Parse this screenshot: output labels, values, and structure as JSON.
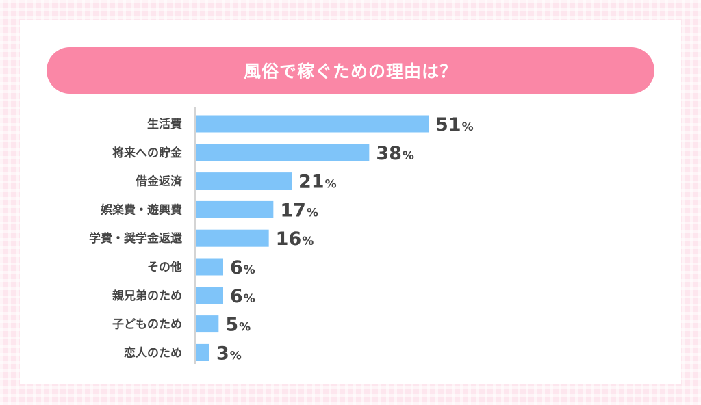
{
  "chart_data": {
    "type": "bar",
    "orientation": "horizontal",
    "title": "風俗で稼ぐための理由は？",
    "categories": [
      "生活費",
      "将来への貯金",
      "借金返済",
      "娯楽費・遊興費",
      "学費・奨学金返還",
      "その他",
      "親兄弟のため",
      "子どものため",
      "恋人のため"
    ],
    "values": [
      51,
      38,
      21,
      17,
      16,
      6,
      6,
      5,
      3
    ],
    "unit": "%",
    "bar_color": "#7fc4f9",
    "grid": false,
    "legend": "none"
  },
  "colors": {
    "title_bg": "#fa87a6",
    "text": "#444444",
    "background": "#fde6ee"
  }
}
